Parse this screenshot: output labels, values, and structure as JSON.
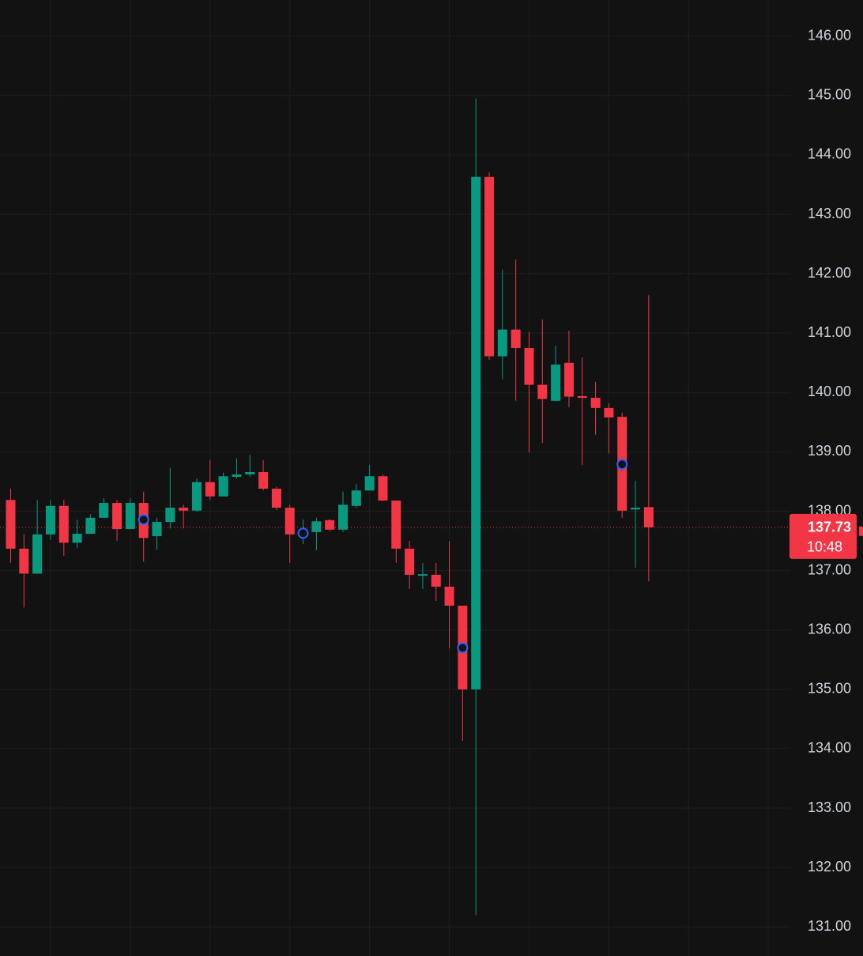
{
  "chart_data": {
    "type": "candlestick",
    "open": [
      138.19,
      137.37,
      136.95,
      137.61,
      138.09,
      137.47,
      137.62,
      137.89,
      138.14,
      137.7,
      138.14,
      137.58,
      137.82,
      138.06,
      138.01,
      138.49,
      138.25,
      138.58,
      138.62,
      138.66,
      138.38,
      138.06,
      137.61,
      137.65,
      137.85,
      137.69,
      138.09,
      138.35,
      138.59,
      138.18,
      137.37,
      136.92,
      136.93,
      136.73,
      136.41,
      135.0,
      143.63,
      140.61,
      141.06,
      140.75,
      140.13,
      139.86,
      140.5,
      139.94,
      139.91,
      139.74,
      139.59,
      138.03,
      138.07
    ],
    "high": [
      138.38,
      137.61,
      138.19,
      138.19,
      138.19,
      137.86,
      137.95,
      138.22,
      138.19,
      138.22,
      138.33,
      137.89,
      138.73,
      138.11,
      138.55,
      138.87,
      138.65,
      138.89,
      138.95,
      138.86,
      138.41,
      138.11,
      137.86,
      137.89,
      137.87,
      138.33,
      138.46,
      138.78,
      138.62,
      138.18,
      137.5,
      137.13,
      137.13,
      137.5,
      136.41,
      144.95,
      143.71,
      142.07,
      142.24,
      141.02,
      141.23,
      140.79,
      141.04,
      140.59,
      140.18,
      139.82,
      139.66,
      138.51,
      141.64
    ],
    "low": [
      137.13,
      136.38,
      136.95,
      137.52,
      137.25,
      137.38,
      137.62,
      137.89,
      137.5,
      137.7,
      137.15,
      137.35,
      137.71,
      137.71,
      137.99,
      138.19,
      138.25,
      138.55,
      138.58,
      138.35,
      138.02,
      137.13,
      137.45,
      137.34,
      137.66,
      137.65,
      138.06,
      138.35,
      138.17,
      137.13,
      136.69,
      136.69,
      136.49,
      135.69,
      134.13,
      131.2,
      140.55,
      140.22,
      139.86,
      138.99,
      139.15,
      139.85,
      139.75,
      138.78,
      139.29,
      138.97,
      137.89,
      137.05,
      136.82
    ],
    "close": [
      137.37,
      136.95,
      137.61,
      138.09,
      137.47,
      137.62,
      137.89,
      138.14,
      137.7,
      138.14,
      137.55,
      137.82,
      138.06,
      138.01,
      138.49,
      138.25,
      138.59,
      138.62,
      138.66,
      138.38,
      138.06,
      137.61,
      137.66,
      137.83,
      137.69,
      138.11,
      138.35,
      138.59,
      138.18,
      137.37,
      136.93,
      136.94,
      136.73,
      136.41,
      135.0,
      143.63,
      140.61,
      141.06,
      140.75,
      140.13,
      139.89,
      140.47,
      139.93,
      139.91,
      139.74,
      139.58,
      138.01,
      138.06,
      137.73
    ],
    "marker_values": [
      null,
      null,
      null,
      null,
      null,
      null,
      null,
      null,
      null,
      null,
      137.86,
      null,
      null,
      null,
      null,
      null,
      null,
      null,
      null,
      null,
      null,
      null,
      137.63,
      null,
      null,
      null,
      null,
      null,
      null,
      null,
      null,
      null,
      null,
      null,
      135.7,
      null,
      null,
      null,
      null,
      null,
      null,
      null,
      null,
      null,
      null,
      null,
      138.79,
      null,
      null
    ],
    "up_color": "#089981",
    "down_color": "#f23645",
    "marker_color": "#2962ff",
    "ylim": [
      130.51,
      146.61
    ],
    "yticks": [
      {
        "value": 131,
        "label": "131.00"
      },
      {
        "value": 132,
        "label": "132.00"
      },
      {
        "value": 133,
        "label": "133.00"
      },
      {
        "value": 134,
        "label": "134.00"
      },
      {
        "value": 135,
        "label": "135.00"
      },
      {
        "value": 136,
        "label": "136.00"
      },
      {
        "value": 137,
        "label": "137.00"
      },
      {
        "value": 138,
        "label": "138.00"
      },
      {
        "value": 139,
        "label": "139.00"
      },
      {
        "value": 140,
        "label": "140.00"
      },
      {
        "value": 141,
        "label": "141.00"
      },
      {
        "value": 142,
        "label": "142.00"
      },
      {
        "value": 143,
        "label": "143.00"
      },
      {
        "value": 144,
        "label": "144.00"
      },
      {
        "value": 145,
        "label": "145.00"
      },
      {
        "value": 146,
        "label": "146.00"
      }
    ],
    "grid": true,
    "last_price": 137.73,
    "countdown": "10:48"
  }
}
